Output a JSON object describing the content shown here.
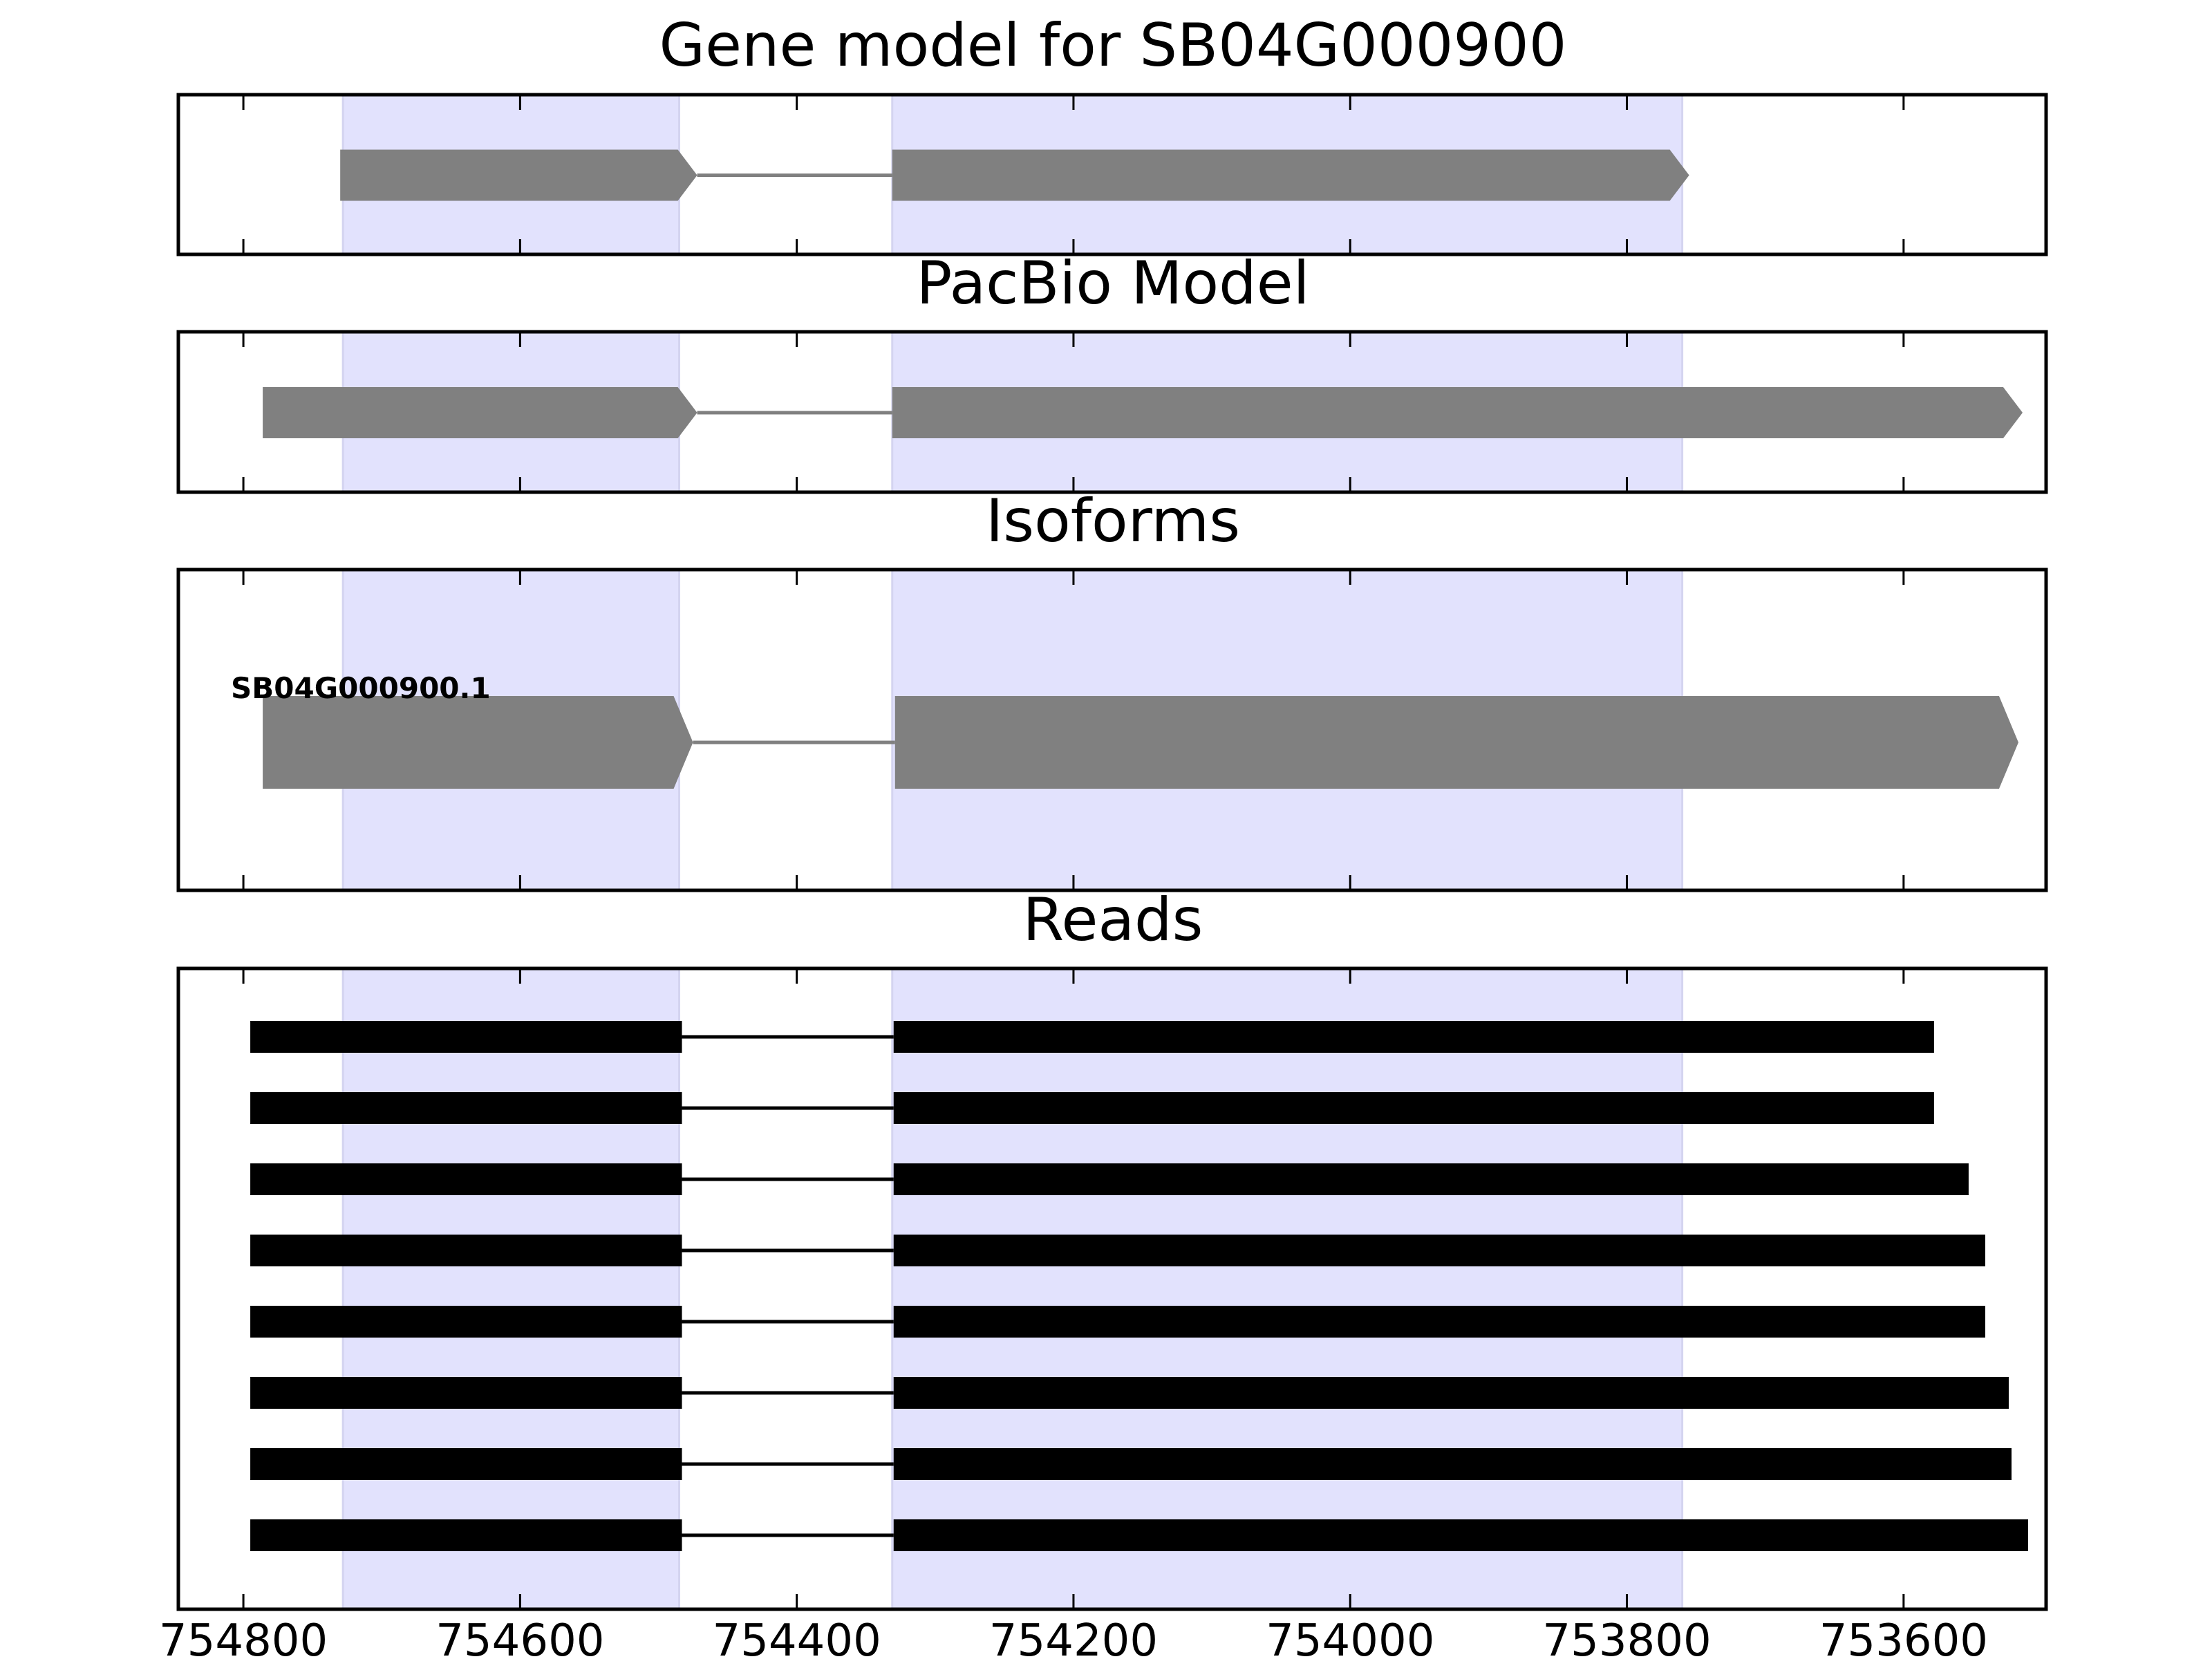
{
  "chart_data": {
    "type": "gene-structure",
    "x_axis": {
      "domain": [
        754847,
        753497
      ],
      "ticks": [
        754800,
        754600,
        754400,
        754200,
        754000,
        753800,
        753600
      ],
      "tick_labels": [
        "754800",
        "754600",
        "754400",
        "754200",
        "754000",
        "753800",
        "753600"
      ]
    },
    "colors": {
      "exon_region_highlight": "#e2e2fd",
      "gene_feature": "#808080",
      "read_feature": "#000000",
      "frame": "#000000"
    },
    "exon_regions": [
      [
        754728,
        754485
      ],
      [
        754331,
        753760
      ]
    ],
    "panels": [
      {
        "title": "Gene model for SB04G000900",
        "features": [
          {
            "type": "exon",
            "start": 754730,
            "end": 754472,
            "arrow": true
          },
          {
            "type": "intron",
            "start": 754472,
            "end": 754331
          },
          {
            "type": "exon",
            "start": 754331,
            "end": 753755,
            "arrow": true
          }
        ]
      },
      {
        "title": "PacBio Model",
        "features": [
          {
            "type": "exon",
            "start": 754786,
            "end": 754472,
            "arrow": true
          },
          {
            "type": "intron",
            "start": 754472,
            "end": 754331
          },
          {
            "type": "exon",
            "start": 754331,
            "end": 753514,
            "arrow": true
          }
        ]
      },
      {
        "title": "Isoforms",
        "isoforms": [
          {
            "name": "SB04G000900.1",
            "features": [
              {
                "type": "exon",
                "start": 754786,
                "end": 754475,
                "arrow": true
              },
              {
                "type": "intron",
                "start": 754475,
                "end": 754329
              },
              {
                "type": "exon",
                "start": 754329,
                "end": 753517,
                "arrow": true
              }
            ]
          }
        ]
      },
      {
        "title": "Reads",
        "reads": [
          {
            "exons": [
              [
                754795,
                754483
              ],
              [
                754330,
                753578
              ]
            ]
          },
          {
            "exons": [
              [
                754795,
                754483
              ],
              [
                754330,
                753578
              ]
            ]
          },
          {
            "exons": [
              [
                754795,
                754483
              ],
              [
                754330,
                753553
              ]
            ]
          },
          {
            "exons": [
              [
                754795,
                754483
              ],
              [
                754330,
                753541
              ]
            ]
          },
          {
            "exons": [
              [
                754795,
                754483
              ],
              [
                754330,
                753541
              ]
            ]
          },
          {
            "exons": [
              [
                754795,
                754483
              ],
              [
                754330,
                753524
              ]
            ]
          },
          {
            "exons": [
              [
                754795,
                754483
              ],
              [
                754330,
                753522
              ]
            ]
          },
          {
            "exons": [
              [
                754795,
                754483
              ],
              [
                754330,
                753510
              ]
            ]
          }
        ]
      }
    ]
  }
}
